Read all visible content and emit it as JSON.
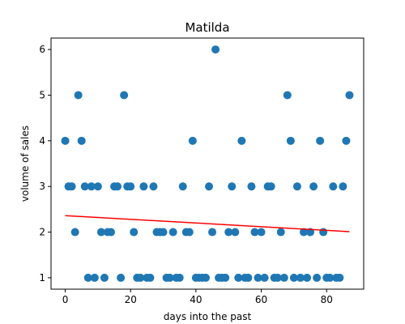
{
  "chart_data": {
    "type": "scatter",
    "title": "Matilda",
    "xlabel": "days into the past",
    "ylabel": "volume of sales",
    "xlim": [
      -4.35,
      91.35
    ],
    "ylim": [
      0.75,
      6.25
    ],
    "xticks": [
      0,
      20,
      40,
      60,
      80
    ],
    "yticks": [
      1,
      2,
      3,
      4,
      5,
      6
    ],
    "grid": false,
    "colors": {
      "points": "#1f77b4",
      "trend": "#ff0000"
    },
    "series": [
      {
        "x": [
          0,
          1,
          2,
          3,
          4,
          5,
          6,
          7,
          8,
          9,
          10,
          11,
          12,
          13,
          14,
          15,
          16,
          17,
          18,
          19,
          20,
          21,
          22,
          23,
          24,
          25,
          26,
          27,
          28,
          29,
          30,
          31,
          32,
          33,
          34,
          35,
          36,
          37,
          38,
          39,
          40,
          41,
          42,
          43,
          44,
          45,
          46,
          47,
          48,
          49,
          50,
          51,
          52,
          53,
          54,
          55,
          56,
          57,
          58,
          59,
          60,
          61,
          62,
          63,
          64,
          65,
          66,
          67,
          68,
          69,
          70,
          71,
          72,
          73,
          74,
          75,
          76,
          77,
          78,
          79,
          80,
          81,
          82,
          83,
          84,
          85,
          86,
          87
        ],
        "y": [
          4,
          3,
          3,
          2,
          5,
          4,
          3,
          1,
          3,
          1,
          3,
          2,
          1,
          2,
          2,
          3,
          3,
          1,
          5,
          3,
          3,
          2,
          1,
          1,
          3,
          1,
          1,
          3,
          2,
          2,
          2,
          1,
          1,
          2,
          1,
          1,
          3,
          2,
          2,
          4,
          1,
          1,
          1,
          1,
          3,
          2,
          6,
          1,
          1,
          1,
          2,
          3,
          2,
          1,
          4,
          1,
          1,
          3,
          2,
          1,
          2,
          1,
          3,
          3,
          1,
          1,
          2,
          1,
          5,
          4,
          1,
          3,
          1,
          2,
          1,
          2,
          3,
          1,
          4,
          2,
          1,
          1,
          3,
          1,
          1,
          3,
          4,
          5
        ]
      }
    ],
    "trend_line": {
      "x": [
        0,
        87
      ],
      "y": [
        2.36,
        2.01
      ]
    }
  }
}
